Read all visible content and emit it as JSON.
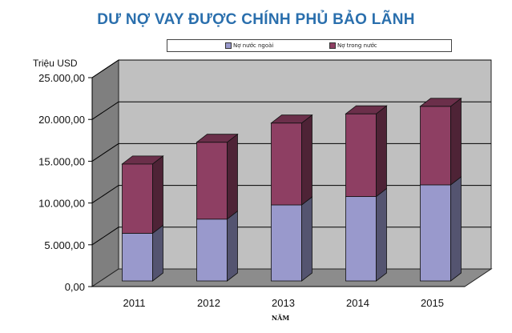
{
  "chart_data": {
    "type": "bar",
    "stacked": true,
    "title": "DƯ NỢ VAY ĐƯỢC CHÍNH PHỦ BẢO LÃNH",
    "ylabel": "Triệu USD",
    "xlabel": "NĂM",
    "categories": [
      "2011",
      "2012",
      "2013",
      "2014",
      "2015"
    ],
    "series": [
      {
        "name": "Nợ nước ngoài",
        "values": [
          5700,
          7400,
          9100,
          10100,
          11500
        ],
        "color": "#9999cc"
      },
      {
        "name": "Nợ trong nước",
        "values": [
          8300,
          9200,
          9800,
          9900,
          9400
        ],
        "color": "#8e3f63"
      }
    ],
    "ylim": [
      0,
      25000
    ],
    "yticks": [
      "0,00",
      "5.000,00",
      "10.000,00",
      "15.000,00",
      "20.000,00",
      "25.000,00"
    ],
    "grid": true,
    "legend_position": "top"
  },
  "colors": {
    "title": "#2a6fad",
    "wall": "#c0c0c0",
    "side_wall": "#7f7f7f",
    "floor": "#8c8c8c"
  }
}
